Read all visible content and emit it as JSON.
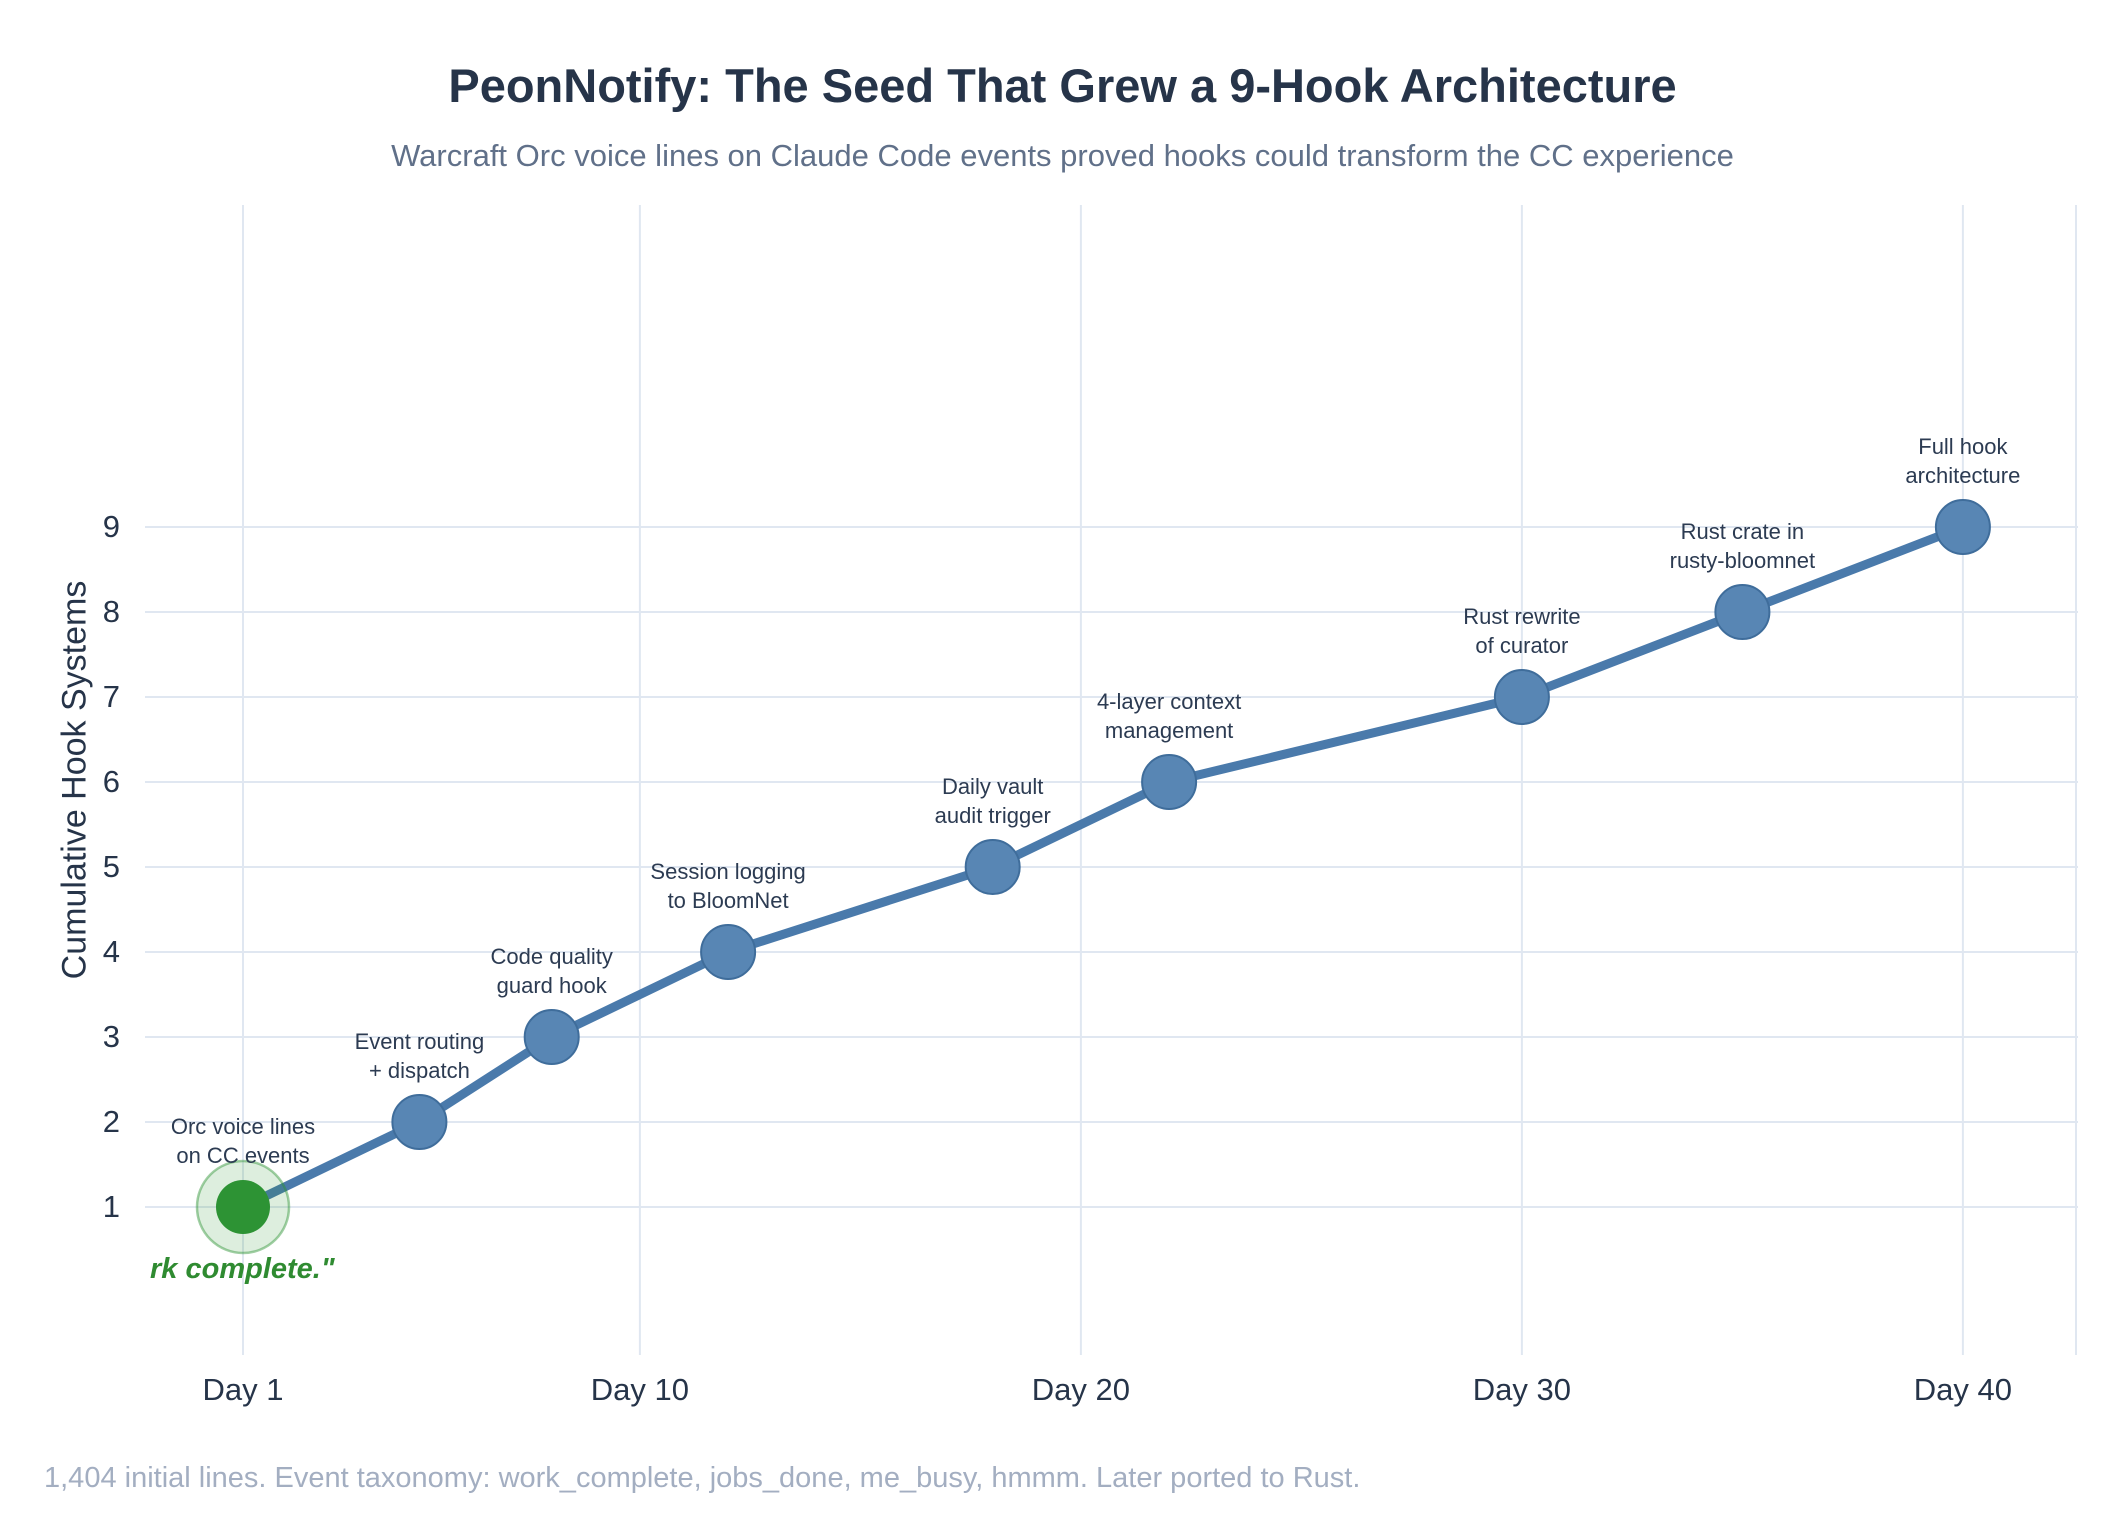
{
  "footer_note": "1,404 initial lines. Event taxonomy: work_complete, jobs_done, me_busy, hmmm. Later ported to Rust.",
  "colors": {
    "title_text": "#263449",
    "subtitle_text": "#607089",
    "footer_text": "#a3aec1",
    "axis_text": "#263449",
    "annotation_text": "#2c3b52",
    "gridline": "#e0e7f1",
    "line": "#4a7aab",
    "marker_fill": "#5886b4",
    "marker_stroke": "#3f6d9b",
    "highlight_green": "#2d9334",
    "highlight_halo_fill": "rgba(45,147,52,0.16)",
    "highlight_halo_stroke": "rgba(45,147,52,0.45)",
    "highlight_text": "#2f8b31"
  },
  "chart_data": {
    "type": "line",
    "title": "PeonNotify: The Seed That Grew a 9-Hook Architecture",
    "subtitle": "Warcraft Orc voice lines on Claude Code events proved hooks could transform the CC experience",
    "xlabel": "",
    "ylabel": "Cumulative Hook Systems",
    "x_tick_days": [
      1,
      10,
      20,
      30,
      40
    ],
    "x_tick_labels": [
      "Day 1",
      "Day 10",
      "Day 20",
      "Day 30",
      "Day 40"
    ],
    "y_ticks": [
      1,
      2,
      3,
      4,
      5,
      6,
      7,
      8,
      9
    ],
    "xlim": [
      -1.2,
      42.6
    ],
    "ylim": [
      -0.8,
      12.8
    ],
    "grid": true,
    "legend": "none",
    "series": [
      {
        "name": "Cumulative hook systems",
        "points": [
          {
            "day": 1,
            "value": 1,
            "label_lines": [
              "Orc voice lines",
              "on CC events"
            ],
            "highlight": true
          },
          {
            "day": 5,
            "value": 2,
            "label_lines": [
              "Event routing",
              "+ dispatch"
            ]
          },
          {
            "day": 8,
            "value": 3,
            "label_lines": [
              "Code quality",
              "guard hook"
            ]
          },
          {
            "day": 12,
            "value": 4,
            "label_lines": [
              "Session logging",
              "to BloomNet"
            ]
          },
          {
            "day": 18,
            "value": 5,
            "label_lines": [
              "Daily vault",
              "audit trigger"
            ]
          },
          {
            "day": 22,
            "value": 6,
            "label_lines": [
              "4-layer context",
              "management"
            ]
          },
          {
            "day": 30,
            "value": 7,
            "label_lines": [
              "Rust rewrite",
              "of curator"
            ]
          },
          {
            "day": 35,
            "value": 8,
            "label_lines": [
              "Rust crate in",
              "rusty-bloomnet"
            ]
          },
          {
            "day": 40,
            "value": 9,
            "label_lines": [
              "Full hook",
              "architecture"
            ]
          }
        ]
      }
    ],
    "highlight_annotation": "rk complete.\""
  }
}
